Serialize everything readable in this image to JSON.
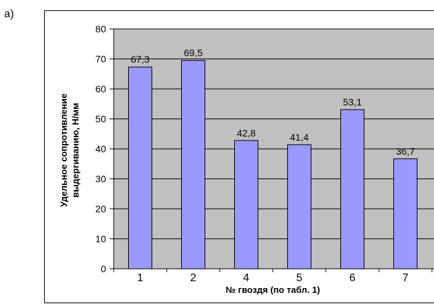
{
  "panel_label": "а)",
  "chart_data": {
    "type": "bar",
    "categories": [
      "1",
      "2",
      "4",
      "5",
      "6",
      "7"
    ],
    "values": [
      67.3,
      69.5,
      42.8,
      41.4,
      53.1,
      36.7
    ],
    "data_labels": [
      "67,3",
      "69,5",
      "42,8",
      "41,4",
      "53,1",
      "36,7"
    ],
    "title": "",
    "xlabel": "№ гвоздя (по табл. 1)",
    "ylabel_lines": [
      "Удельное сопротивление",
      "выдергиванию, Н/мм"
    ],
    "ylim": [
      0,
      80
    ],
    "yticks": [
      "0",
      "10",
      "20",
      "30",
      "40",
      "50",
      "60",
      "70",
      "80"
    ],
    "grid": true,
    "legend": "none",
    "colors": {
      "bar": "#9999ff",
      "plot_bg": "#c0c0c0",
      "grid": "#000000"
    }
  }
}
